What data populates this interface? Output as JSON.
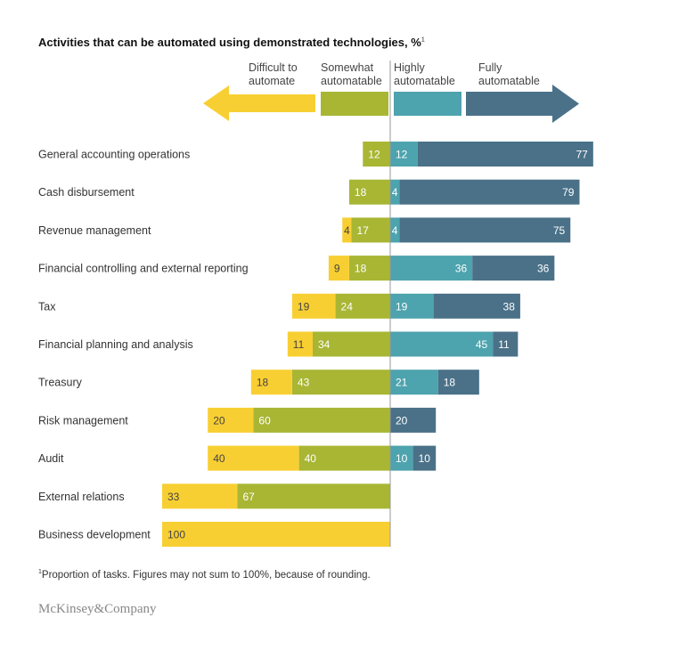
{
  "title": "Activities that can be automated using demonstrated technologies, %",
  "title_note_marker": "1",
  "footnote_marker": "1",
  "footnote": "Proportion of tasks. Figures may not sum to 100%, because of rounding.",
  "brand": "McKinsey&Company",
  "colors": {
    "difficult": "#F8CF32",
    "somewhat": "#A8B634",
    "highly": "#4DA3AE",
    "fully": "#4A7188",
    "axis": "#999999",
    "label": "#333333"
  },
  "chart_data": {
    "type": "bar",
    "orientation": "horizontal",
    "stacked": "diverging",
    "unit": "%",
    "legend": {
      "left": [
        {
          "name": "Difficult to automate",
          "line1": "Difficult to",
          "line2": "automate"
        },
        {
          "name": "Somewhat automatable",
          "line1": "Somewhat",
          "line2": "automatable"
        }
      ],
      "right": [
        {
          "name": "Highly automatable",
          "line1": "Highly",
          "line2": "automatable"
        },
        {
          "name": "Fully automatable",
          "line1": "Fully",
          "line2": "automatable"
        }
      ]
    },
    "categories": [
      "General accounting operations",
      "Cash disbursement",
      "Revenue management",
      "Financial controlling and external reporting",
      "Tax",
      "Financial planning and analysis",
      "Treasury",
      "Risk management",
      "Audit",
      "External relations",
      "Business development"
    ],
    "series": [
      {
        "name": "Difficult to automate",
        "key": "difficult",
        "side": "left",
        "values": [
          0,
          0,
          4,
          9,
          19,
          11,
          18,
          20,
          40,
          33,
          100
        ]
      },
      {
        "name": "Somewhat automatable",
        "key": "somewhat",
        "side": "left",
        "values": [
          12,
          18,
          17,
          18,
          24,
          34,
          43,
          60,
          40,
          67,
          0
        ]
      },
      {
        "name": "Highly automatable",
        "key": "highly",
        "side": "right",
        "values": [
          12,
          4,
          4,
          36,
          19,
          45,
          21,
          0,
          10,
          0,
          0
        ]
      },
      {
        "name": "Fully automatable",
        "key": "fully",
        "side": "right",
        "values": [
          77,
          79,
          75,
          36,
          38,
          11,
          18,
          20,
          10,
          0,
          0
        ]
      }
    ]
  }
}
